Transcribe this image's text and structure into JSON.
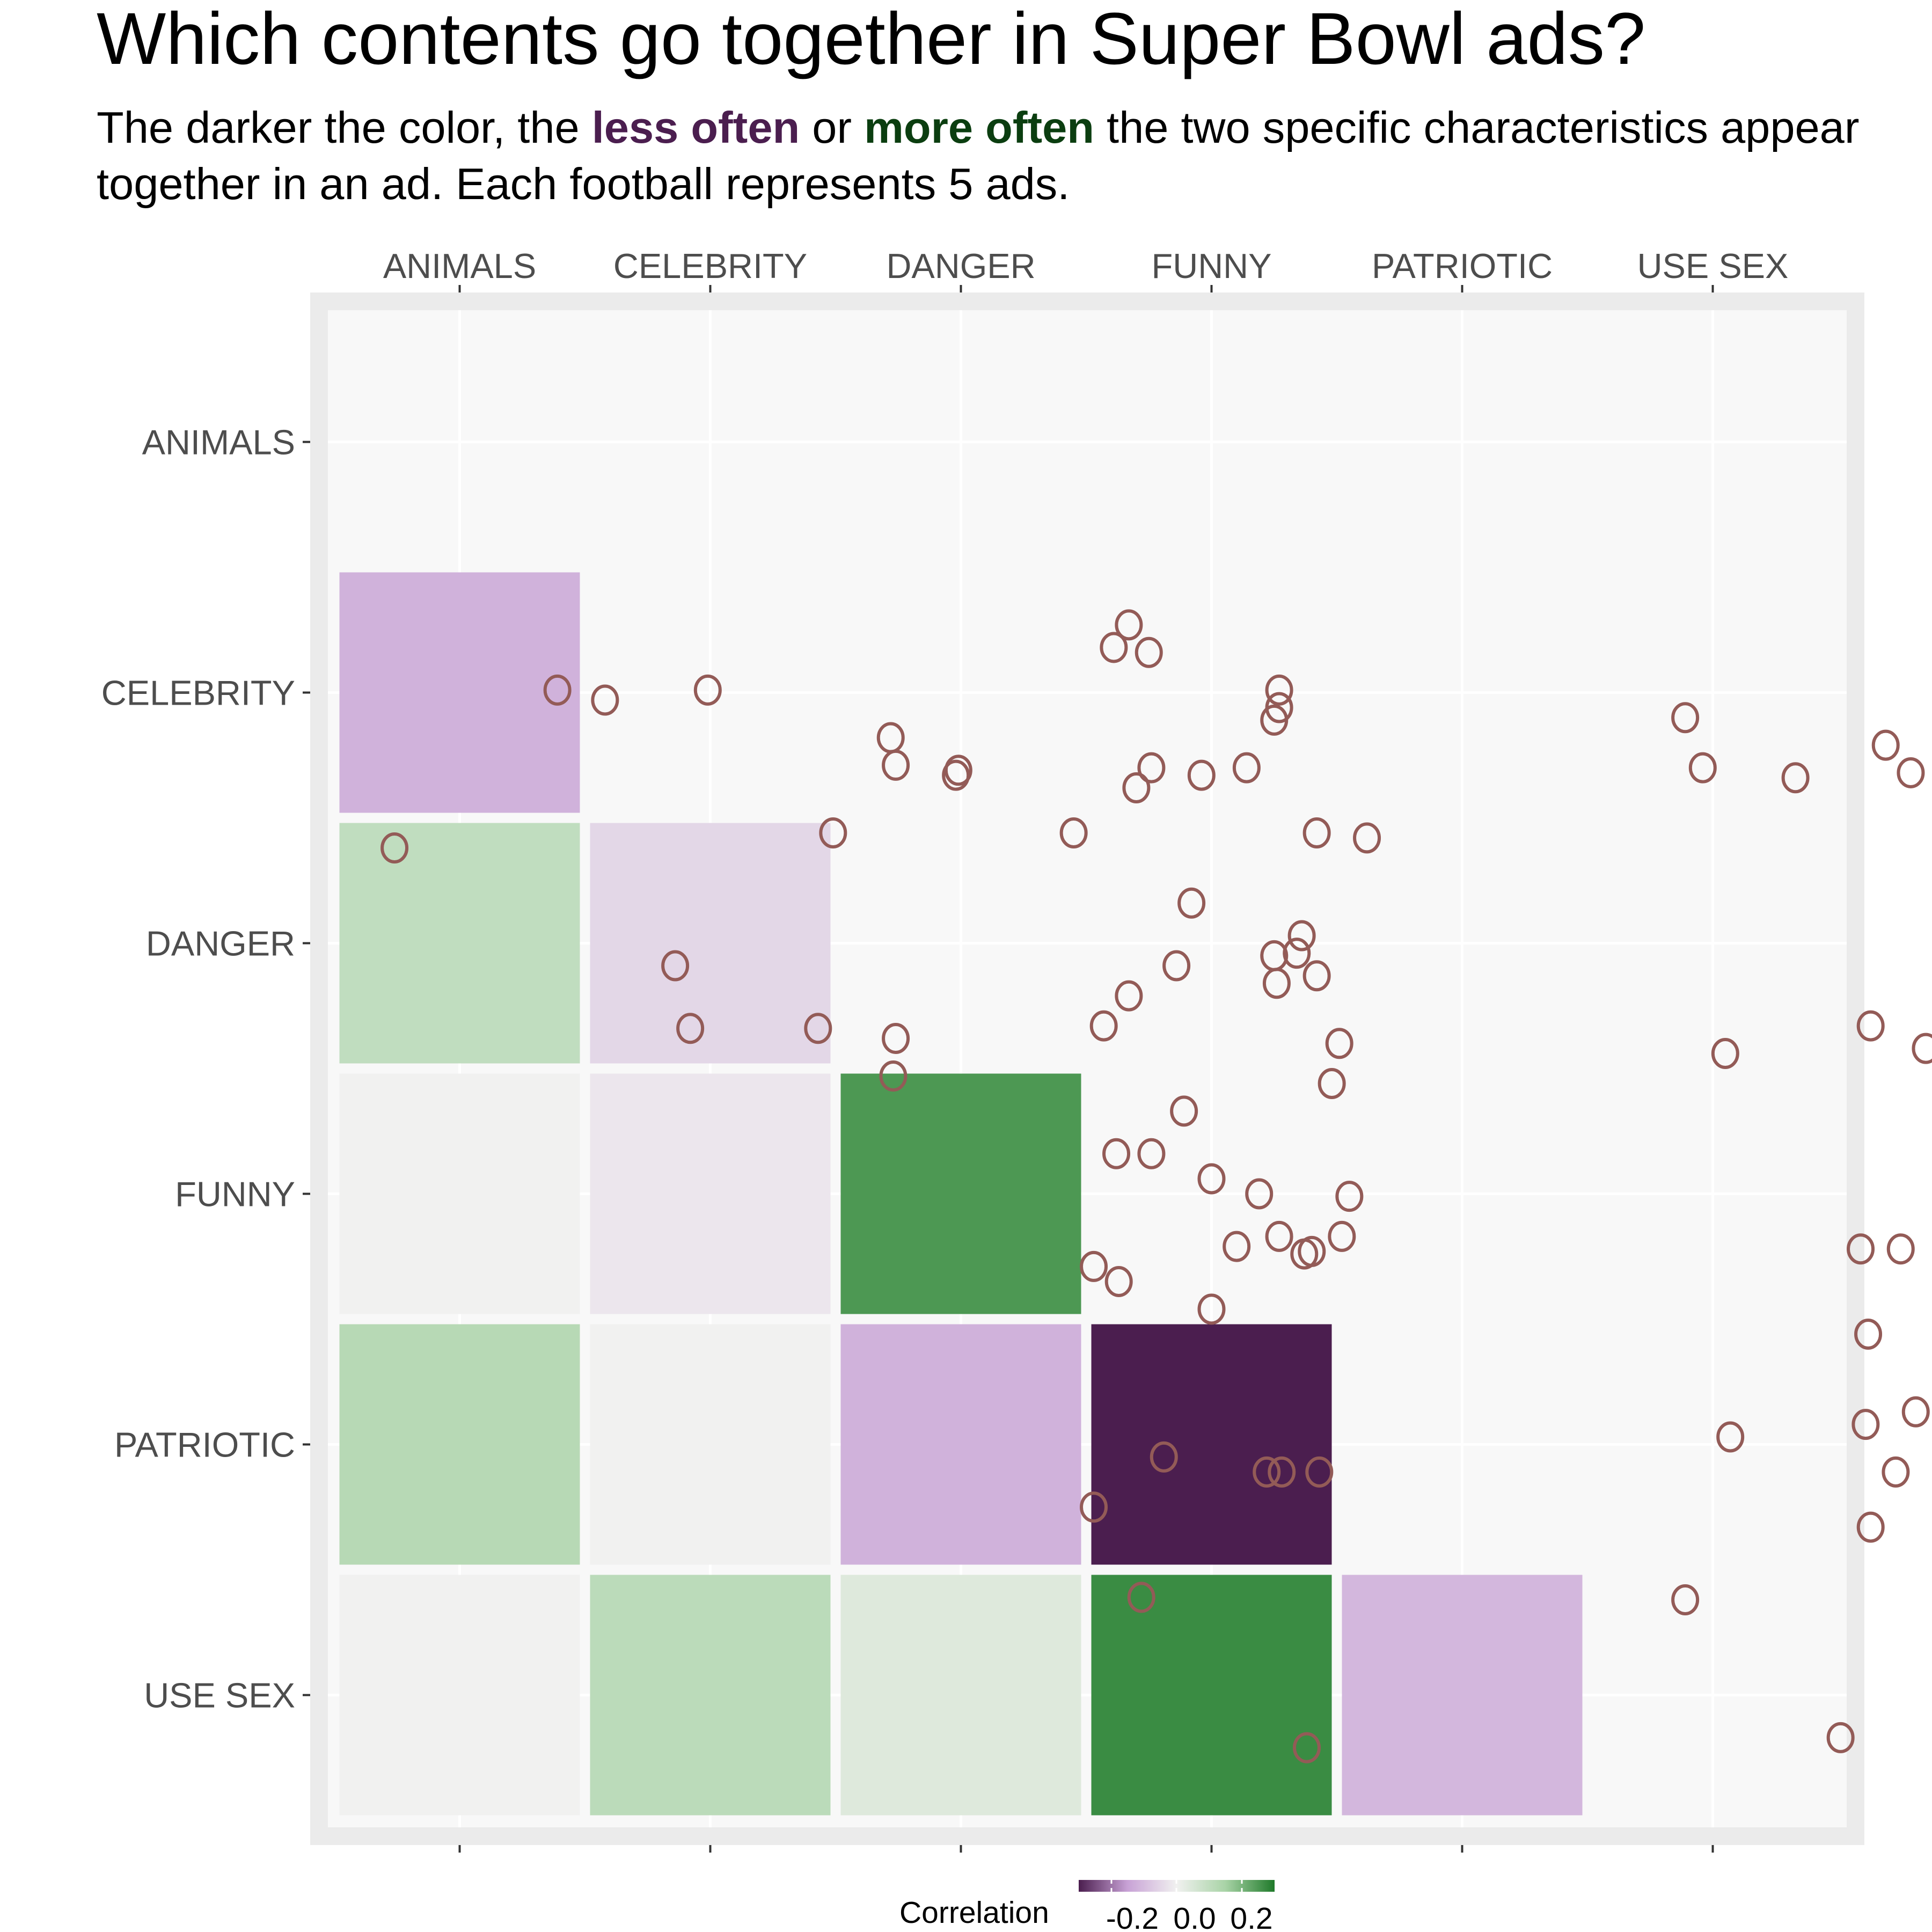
{
  "chart_data": {
    "type": "heatmap",
    "title": "Which contents go together in Super Bowl ads?",
    "subtitle": {
      "before": "The darker the color, the ",
      "less": "less often",
      "middle": " or ",
      "more": "more often",
      "after": " the two specific characteristics appear together in an ad. Each football represents 5 ads."
    },
    "categories": [
      "ANIMALS",
      "CELEBRITY",
      "DANGER",
      "FUNNY",
      "PATRIOTIC",
      "USE SEX"
    ],
    "correlations": [
      {
        "row": "CELEBRITY",
        "col": "ANIMALS",
        "value": -0.12
      },
      {
        "row": "DANGER",
        "col": "ANIMALS",
        "value": 0.1
      },
      {
        "row": "DANGER",
        "col": "CELEBRITY",
        "value": -0.05
      },
      {
        "row": "FUNNY",
        "col": "ANIMALS",
        "value": 0.0
      },
      {
        "row": "FUNNY",
        "col": "CELEBRITY",
        "value": -0.02
      },
      {
        "row": "FUNNY",
        "col": "DANGER",
        "value": 0.25
      },
      {
        "row": "PATRIOTIC",
        "col": "ANIMALS",
        "value": 0.12
      },
      {
        "row": "PATRIOTIC",
        "col": "CELEBRITY",
        "value": 0.0
      },
      {
        "row": "PATRIOTIC",
        "col": "DANGER",
        "value": -0.12
      },
      {
        "row": "PATRIOTIC",
        "col": "FUNNY",
        "value": -0.3
      },
      {
        "row": "USE SEX",
        "col": "ANIMALS",
        "value": 0.0
      },
      {
        "row": "USE SEX",
        "col": "CELEBRITY",
        "value": 0.11
      },
      {
        "row": "USE SEX",
        "col": "DANGER",
        "value": 0.04
      },
      {
        "row": "USE SEX",
        "col": "FUNNY",
        "value": 0.27
      },
      {
        "row": "USE SEX",
        "col": "PATRIOTIC",
        "value": -0.11
      }
    ],
    "footballs": [
      [
        1.39,
        5.01
      ],
      [
        1.58,
        4.97
      ],
      [
        1.99,
        5.01
      ],
      [
        0.74,
        4.38
      ],
      [
        2.72,
        4.82
      ],
      [
        2.74,
        4.71
      ],
      [
        2.99,
        4.69
      ],
      [
        2.98,
        4.67
      ],
      [
        2.49,
        4.44
      ],
      [
        3.45,
        4.44
      ],
      [
        3.67,
        5.27
      ],
      [
        3.61,
        5.18
      ],
      [
        3.75,
        5.16
      ],
      [
        4.27,
        5.01
      ],
      [
        4.27,
        4.94
      ],
      [
        4.25,
        4.89
      ],
      [
        3.76,
        4.7
      ],
      [
        3.7,
        4.62
      ],
      [
        3.96,
        4.67
      ],
      [
        4.14,
        4.7
      ],
      [
        4.42,
        4.44
      ],
      [
        4.62,
        4.42
      ],
      [
        5.89,
        4.9
      ],
      [
        5.96,
        4.7
      ],
      [
        6.33,
        4.66
      ],
      [
        6.69,
        4.79
      ],
      [
        6.79,
        4.68
      ],
      [
        6.99,
        4.46
      ],
      [
        7.55,
        4.39
      ],
      [
        7.59,
        5.02
      ],
      [
        8.04,
        4.89
      ],
      [
        3.92,
        4.16
      ],
      [
        3.86,
        3.91
      ],
      [
        4.26,
        3.84
      ],
      [
        4.42,
        3.87
      ],
      [
        4.34,
        3.96
      ],
      [
        4.36,
        4.03
      ],
      [
        4.25,
        3.95
      ],
      [
        1.86,
        3.91
      ],
      [
        1.92,
        3.66
      ],
      [
        2.43,
        3.66
      ],
      [
        2.74,
        3.62
      ],
      [
        2.73,
        3.47
      ],
      [
        3.57,
        3.67
      ],
      [
        3.67,
        3.79
      ],
      [
        4.51,
        3.6
      ],
      [
        4.48,
        3.44
      ],
      [
        3.89,
        3.33
      ],
      [
        3.62,
        3.16
      ],
      [
        3.76,
        3.16
      ],
      [
        6.05,
        3.56
      ],
      [
        6.63,
        3.67
      ],
      [
        6.85,
        3.58
      ],
      [
        7.1,
        3.85
      ],
      [
        7.1,
        3.7
      ],
      [
        7.13,
        3.48
      ],
      [
        4.0,
        3.06
      ],
      [
        4.19,
        3.0
      ],
      [
        4.55,
        2.99
      ],
      [
        4.1,
        2.79
      ],
      [
        4.27,
        2.83
      ],
      [
        4.4,
        2.77
      ],
      [
        4.52,
        2.83
      ],
      [
        4.37,
        2.76
      ],
      [
        3.53,
        2.71
      ],
      [
        3.63,
        2.65
      ],
      [
        4.0,
        2.54
      ],
      [
        6.59,
        2.78
      ],
      [
        6.75,
        2.78
      ],
      [
        6.62,
        2.44
      ],
      [
        3.81,
        1.95
      ],
      [
        4.22,
        1.89
      ],
      [
        4.28,
        1.89
      ],
      [
        4.43,
        1.89
      ],
      [
        3.53,
        1.75
      ],
      [
        6.07,
        2.03
      ],
      [
        6.61,
        2.08
      ],
      [
        6.81,
        2.13
      ],
      [
        7.06,
        2.12
      ],
      [
        6.73,
        1.89
      ],
      [
        6.95,
        1.89
      ],
      [
        6.95,
        1.92
      ],
      [
        7.03,
        1.91
      ],
      [
        7.14,
        1.96
      ],
      [
        7.4,
        1.96
      ],
      [
        6.63,
        1.67
      ],
      [
        6.95,
        1.71
      ],
      [
        7.17,
        1.47
      ],
      [
        3.72,
        1.39
      ],
      [
        5.89,
        1.38
      ],
      [
        4.38,
        0.79
      ],
      [
        6.51,
        0.83
      ]
    ]
  },
  "axis": {
    "x_labels": [
      "ANIMALS",
      "CELEBRITY",
      "DANGER",
      "FUNNY",
      "PATRIOTIC",
      "USE SEX"
    ],
    "y_labels": [
      "ANIMALS",
      "CELEBRITY",
      "DANGER",
      "FUNNY",
      "PATRIOTIC",
      "USE SEX"
    ]
  },
  "legend": {
    "title": "Correlation",
    "tick_labels": [
      "-0.2",
      "0.0",
      "0.2"
    ],
    "range": [
      -0.3,
      0.3
    ]
  },
  "colors": {
    "panel_border": "#ebebeb",
    "panel_background": "#f8f8f8",
    "football_stroke": "#935b57",
    "scale_low": "#4b1e4f",
    "scale_mid": "#f1f1f0",
    "scale_high": "#1f7a2a"
  }
}
